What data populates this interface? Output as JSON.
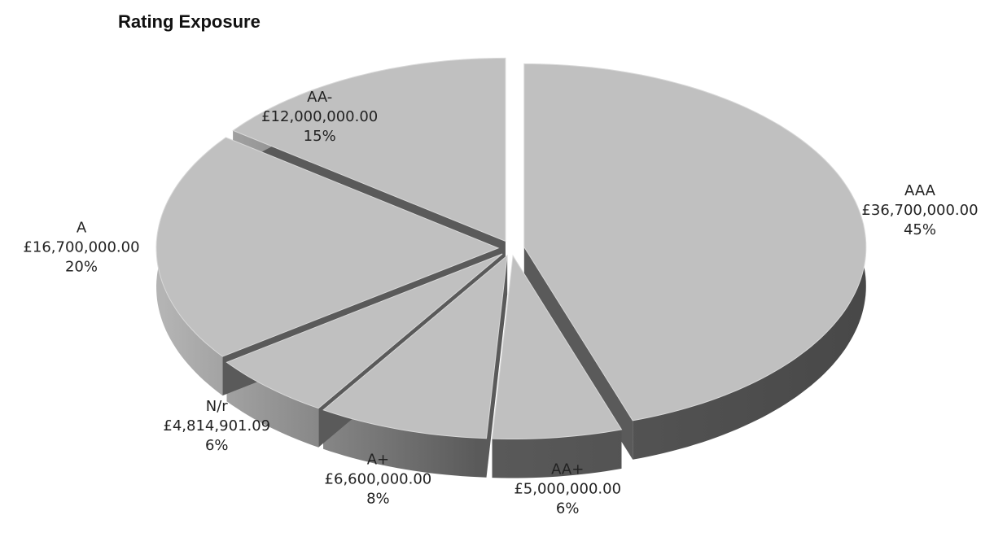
{
  "chart_data": {
    "type": "pie",
    "title": "Rating Exposure",
    "categories": [
      "AAA",
      "AA+",
      "A+",
      "N/r",
      "A",
      "AA-"
    ],
    "values": [
      36700000,
      5000000,
      6600000,
      4814901.09,
      16700000,
      12000000
    ],
    "value_labels": [
      "£36,700,000.00",
      "£5,000,000.00",
      "£6,600,000.00",
      "£4,814,901.09",
      "£16,700,000.00",
      "£12,000,000.00"
    ],
    "percents": [
      45,
      6,
      8,
      6,
      20,
      15
    ],
    "percent_labels": [
      "45%",
      "6%",
      "8%",
      "6%",
      "20%",
      "15%"
    ],
    "color": "#c0c0c0"
  }
}
